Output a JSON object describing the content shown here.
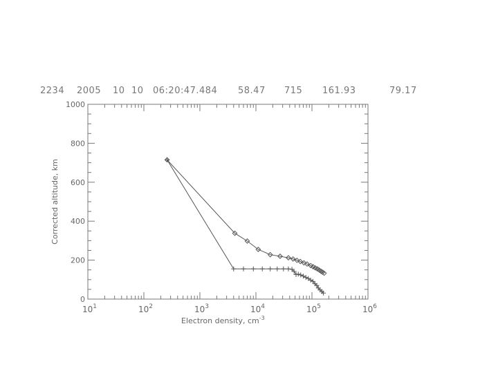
{
  "header": {
    "fields": [
      "2234",
      "2005",
      "10",
      "10",
      "06:20:47.484",
      "58.47",
      "715",
      "161.93",
      "79.17"
    ]
  },
  "chart_data": {
    "type": "line",
    "title": "",
    "xlabel": "Electron density, cm",
    "xlabel_exponent": "-3",
    "ylabel": "Corrected altitude, km",
    "xscale": "log",
    "xlim": [
      10,
      1000000
    ],
    "ylim": [
      0,
      1000
    ],
    "x_tick_labels": [
      {
        "base": "10",
        "exp": "1",
        "value": 10
      },
      {
        "base": "10",
        "exp": "2",
        "value": 100
      },
      {
        "base": "10",
        "exp": "3",
        "value": 1000
      },
      {
        "base": "10",
        "exp": "4",
        "value": 10000
      },
      {
        "base": "10",
        "exp": "5",
        "value": 100000
      },
      {
        "base": "10",
        "exp": "6",
        "value": 1000000
      }
    ],
    "y_tick_labels": [
      "0",
      "200",
      "400",
      "600",
      "800",
      "1000"
    ],
    "y_tick_values": [
      0,
      200,
      400,
      600,
      800,
      1000
    ],
    "grid": false,
    "legend": "none",
    "series": [
      {
        "marker": "diamond",
        "x": [
          260,
          4200,
          7000,
          11000,
          18000,
          27000,
          38000,
          46000,
          54000,
          62000,
          72000,
          82000,
          95000,
          105000,
          115000,
          125000,
          135000,
          145000,
          155000,
          165000
        ],
        "y": [
          715,
          338,
          298,
          255,
          228,
          220,
          212,
          206,
          199,
          193,
          186,
          180,
          172,
          166,
          160,
          155,
          149,
          143,
          138,
          133
        ]
      },
      {
        "marker": "plus",
        "x": [
          260,
          4000,
          6000,
          9000,
          13000,
          18000,
          24000,
          31000,
          38000,
          44000,
          48000,
          52000,
          57000,
          63000,
          70000,
          78000,
          86000,
          95000,
          104000,
          113000,
          122000,
          130000,
          140000,
          150000,
          160000
        ],
        "y": [
          715,
          155,
          155,
          155,
          155,
          155,
          155,
          155,
          155,
          153,
          142,
          126,
          128,
          124,
          118,
          111,
          106,
          97,
          91,
          79,
          70,
          57,
          47,
          39,
          31
        ]
      }
    ]
  }
}
